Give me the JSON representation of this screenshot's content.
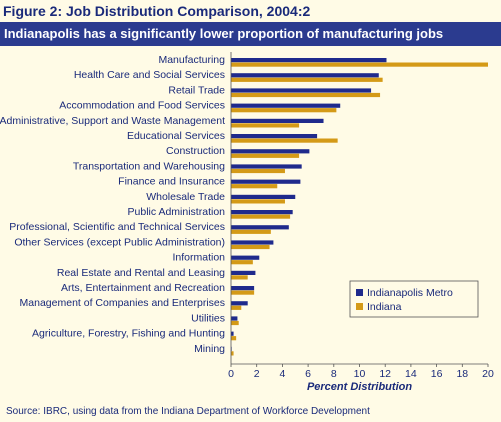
{
  "figure": {
    "title": "Figure 2: Job Distribution Comparison, 2004:2",
    "subtitle": "Indianapolis has a significantly lower proportion of manufacturing jobs",
    "source": "Source: IBRC, using data from the Indiana Department of Workforce Development"
  },
  "colors": {
    "indianapolis": "#1f2a8c",
    "indiana": "#d49a17",
    "background": "#fffbe6",
    "banner": "#2b3b8f",
    "text": "#1a2a7a"
  },
  "chart_data": {
    "type": "bar",
    "orientation": "horizontal",
    "xlabel": "Percent Distribution",
    "xlim": [
      0,
      20
    ],
    "xticks": [
      0,
      2,
      4,
      6,
      8,
      10,
      12,
      14,
      16,
      18,
      20
    ],
    "grid": false,
    "legend_position": "bottom-right",
    "categories": [
      "Manufacturing",
      "Health Care and Social Services",
      "Retail Trade",
      "Accommodation and Food Services",
      "Administrative, Support and Waste Management",
      "Educational Services",
      "Construction",
      "Transportation and Warehousing",
      "Finance and Insurance",
      "Wholesale Trade",
      "Public Administration",
      "Professional, Scientific and Technical Services",
      "Other Services (except Public Administration)",
      "Information",
      "Real Estate and Rental and Leasing",
      "Arts, Entertainment and Recreation",
      "Management of Companies and Enterprises",
      "Utilities",
      "Agriculture, Forestry, Fishing and Hunting",
      "Mining"
    ],
    "series": [
      {
        "name": "Indianapolis Metro",
        "values": [
          12.1,
          11.5,
          10.9,
          8.5,
          7.2,
          6.7,
          6.1,
          5.5,
          5.4,
          5.0,
          4.8,
          4.5,
          3.3,
          2.2,
          1.9,
          1.8,
          1.3,
          0.5,
          0.2,
          0.05
        ]
      },
      {
        "name": "Indiana",
        "values": [
          20.0,
          11.8,
          11.6,
          8.2,
          5.3,
          8.3,
          5.3,
          4.2,
          3.6,
          4.2,
          4.6,
          3.1,
          3.0,
          1.7,
          1.3,
          1.8,
          0.8,
          0.6,
          0.4,
          0.2
        ]
      }
    ]
  }
}
